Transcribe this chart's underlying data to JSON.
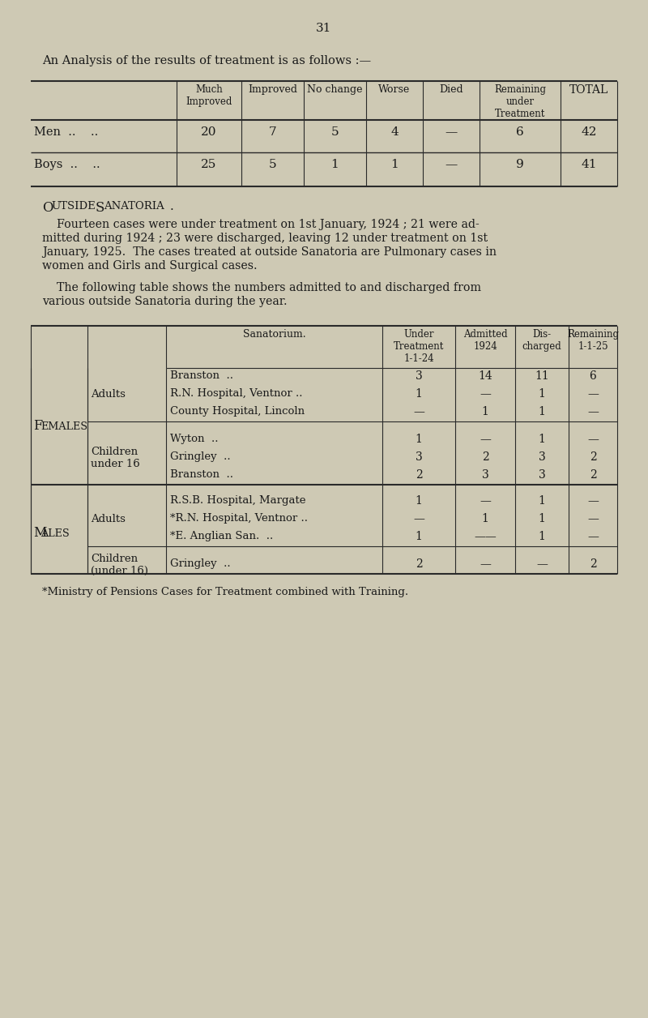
{
  "bg_color": "#cec9b4",
  "page_number": "31",
  "intro_text": "An Analysis of the results of treatment is as follows :—",
  "table1": {
    "headers": [
      "Much\nImproved",
      "Improved",
      "No change",
      "Worse",
      "Died",
      "Remaining\nunder\nTreatment",
      "TOTAL"
    ],
    "rows": [
      [
        "Men  ..    ..",
        "20",
        "7",
        "5",
        "4",
        "—",
        "6",
        "42"
      ],
      [
        "Boys  ..    ..",
        "25",
        "5",
        "1",
        "1",
        "—",
        "9",
        "41"
      ]
    ]
  },
  "outside_heading": "Outside Sanatoria.",
  "para1_lines": [
    "    Fourteen cases were under treatment on 1st January, 1924 ; 21 were ad-",
    "mitted during 1924 ; 23 were discharged, leaving 12 under treatment on 1st",
    "January, 1925.  The cases treated at outside Sanatoria are Pulmonary cases in",
    "women and Girls and Surgical cases."
  ],
  "para2_lines": [
    "    The following table shows the numbers admitted to and discharged from",
    "various outside Sanatoria during the year."
  ],
  "table2_col_headers": [
    "Sanatorium.",
    "Under\nTreatment\n1-1-24",
    "Admitted\n1924",
    "Dis-\ncharged",
    "Remaining\n1-1-25"
  ],
  "table2_sections": [
    {
      "sex": "Females",
      "groups": [
        {
          "age": "Adults",
          "rows": [
            [
              "Branston  ..",
              "3",
              "14",
              "11",
              "6"
            ],
            [
              "R.N. Hospital, Ventnor ..",
              "1",
              "—",
              "1",
              "—"
            ],
            [
              "County Hospital, Lincoln",
              "—",
              "1",
              "1",
              "—"
            ]
          ]
        },
        {
          "age": "Children\nunder 16",
          "rows": [
            [
              "Wyton  ..",
              "1",
              "—",
              "1",
              "—"
            ],
            [
              "Gringley  ..",
              "3",
              "2",
              "3",
              "2"
            ],
            [
              "Branston  ..",
              "2",
              "3",
              "3",
              "2"
            ]
          ]
        }
      ]
    },
    {
      "sex": "Males",
      "groups": [
        {
          "age": "Adults",
          "rows": [
            [
              "R.S.B. Hospital, Margate",
              "1",
              "—",
              "1",
              "—"
            ],
            [
              "*R.N. Hospital, Ventnor ..",
              "—",
              "1",
              "1",
              "—"
            ],
            [
              "*E. Anglian San.  ..",
              "1",
              "——",
              "1",
              "—"
            ]
          ]
        },
        {
          "age": "Children\n(under 16)",
          "rows": [
            [
              "Gringley  ..",
              "2",
              "—",
              "—",
              "2"
            ]
          ]
        }
      ]
    }
  ],
  "footnote": "*Ministry of Pensions Cases for Treatment combined with Training."
}
